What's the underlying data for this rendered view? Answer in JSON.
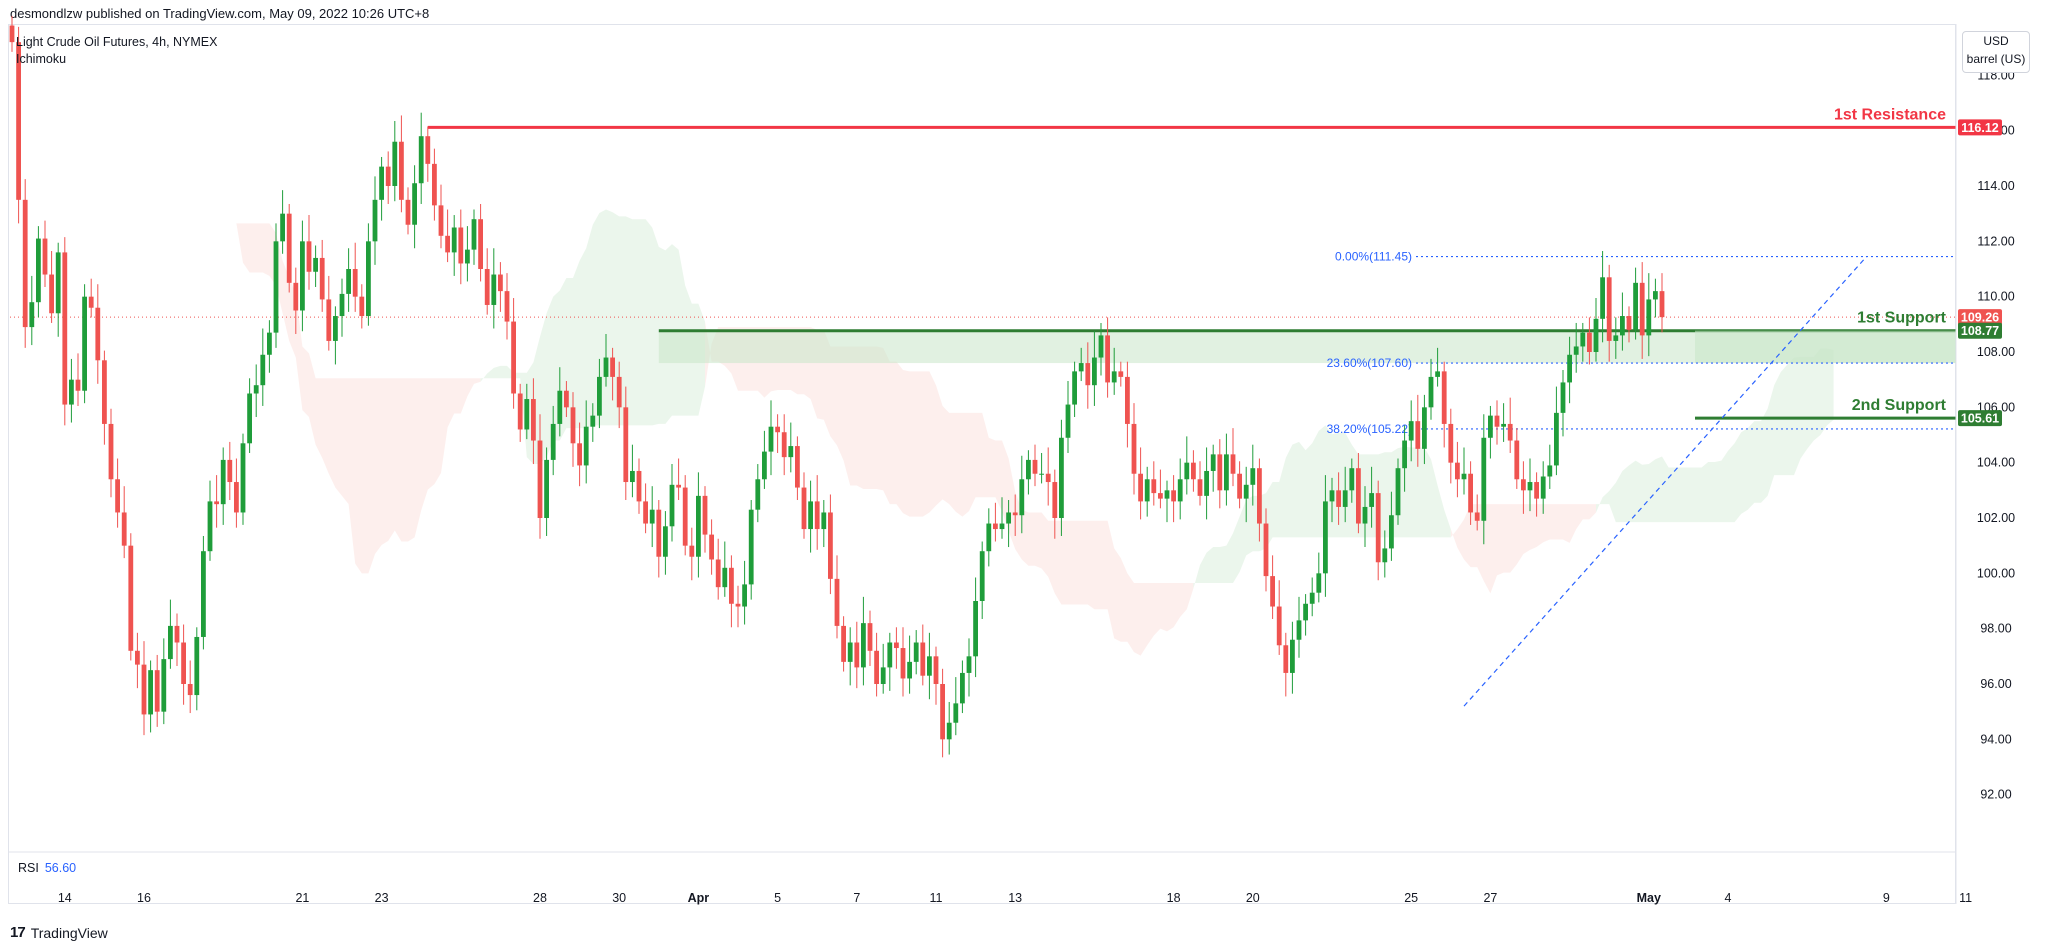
{
  "header": {
    "published_by": "desmondlzw published on TradingView.com, May 09, 2022 10:26 UTC+8"
  },
  "legend": {
    "symbol": "Light Crude Oil Futures, 4h, NYMEX",
    "indicator": "Ichimoku"
  },
  "unit": {
    "currency": "USD",
    "unit": "barrel (US)"
  },
  "rsi": {
    "label": "RSI",
    "value": "56.60"
  },
  "footer": {
    "brand": "TradingView",
    "logo_glyph": "17"
  },
  "colors": {
    "up": "#26a69a",
    "up_body": "#1f9d3a",
    "down": "#ef5350",
    "resistance": "#f23645",
    "support": "#2e7d32",
    "fib": "#2962ff",
    "kumo_bull": "#e8f5e9",
    "kumo_bear": "#fdecea"
  },
  "chart_data": {
    "type": "candlestick",
    "title": "Light Crude Oil Futures, 4h, NYMEX",
    "ylim": [
      90,
      120
    ],
    "y_ticks": [
      "92.00",
      "94.00",
      "96.00",
      "98.00",
      "100.00",
      "102.00",
      "104.00",
      "106.00",
      "108.00",
      "110.00",
      "112.00",
      "114.00",
      "116.00",
      "118.00"
    ],
    "x_ticks": [
      "14",
      "16",
      "21",
      "23",
      "28",
      "30",
      "Apr",
      "5",
      "7",
      "11",
      "13",
      "18",
      "20",
      "25",
      "27",
      "May",
      "4",
      "9",
      "11"
    ],
    "x_tick_index": [
      8,
      20,
      44,
      56,
      80,
      92,
      104,
      116,
      128,
      140,
      152,
      176,
      188,
      212,
      224,
      248,
      260,
      284,
      296
    ],
    "last_price": "109.26",
    "levels": [
      {
        "name": "1st Resistance",
        "value": 116.12,
        "label": "116.12",
        "color": "#f23645",
        "start_index": 63
      },
      {
        "name": "1st Support",
        "value": 108.77,
        "label": "108.77",
        "color": "#2e7d32",
        "start_index": 98
      },
      {
        "name": "2nd Support",
        "value": 105.61,
        "label": "105.61",
        "color": "#2e7d32",
        "start_index": 255
      }
    ],
    "fib": [
      {
        "label": "0.00%(111.45)",
        "value": 111.45
      },
      {
        "label": "23.60%(107.60)",
        "value": 107.6
      },
      {
        "label": "38.20%(105.22)",
        "value": 105.22
      }
    ],
    "fib_trend": {
      "from_index": 220,
      "from": 95.2,
      "to_index": 281,
      "to": 111.45
    },
    "close": [
      119.2,
      113.5,
      108.9,
      109.8,
      112.1,
      110.8,
      109.4,
      111.6,
      106.1,
      107.0,
      106.6,
      110.0,
      109.6,
      107.7,
      105.4,
      103.4,
      102.2,
      101.0,
      97.2,
      96.7,
      94.9,
      96.5,
      95.0,
      96.9,
      98.1,
      97.5,
      96.0,
      95.6,
      97.7,
      100.8,
      102.6,
      102.5,
      104.1,
      103.3,
      102.2,
      104.7,
      106.5,
      106.8,
      107.9,
      108.7,
      112.0,
      113.0,
      110.5,
      109.5,
      112.0,
      110.9,
      111.4,
      109.9,
      108.4,
      109.3,
      110.1,
      111.0,
      110.0,
      109.3,
      112.0,
      113.5,
      114.7,
      114.0,
      115.6,
      113.5,
      112.6,
      114.1,
      115.8,
      114.8,
      113.3,
      112.2,
      111.6,
      112.5,
      111.2,
      111.7,
      112.8,
      111.0,
      109.7,
      110.8,
      110.2,
      109.1,
      106.5,
      105.2,
      106.3,
      104.8,
      102.0,
      104.1,
      105.4,
      106.6,
      106.0,
      104.7,
      103.9,
      105.3,
      105.7,
      107.1,
      107.8,
      107.1,
      106.0,
      103.3,
      103.7,
      102.6,
      101.8,
      102.3,
      100.6,
      101.7,
      103.2,
      103.1,
      101.0,
      100.6,
      102.8,
      101.4,
      100.5,
      99.5,
      100.2,
      98.9,
      98.8,
      99.6,
      102.3,
      103.4,
      104.4,
      105.3,
      105.1,
      104.2,
      104.6,
      103.1,
      101.6,
      102.6,
      101.6,
      102.2,
      99.8,
      98.1,
      96.8,
      97.5,
      96.6,
      98.2,
      97.2,
      96.0,
      96.6,
      97.5,
      97.3,
      96.2,
      96.8,
      97.5,
      96.3,
      97.0,
      96.0,
      94.0,
      94.6,
      95.3,
      96.4,
      97.0,
      99.0,
      100.8,
      101.8,
      101.6,
      101.8,
      102.2,
      102.1,
      103.4,
      104.1,
      103.6,
      103.6,
      103.3,
      102.0,
      104.9,
      106.1,
      107.3,
      107.6,
      106.8,
      107.8,
      108.6,
      106.9,
      107.3,
      107.1,
      105.4,
      103.6,
      102.6,
      103.4,
      102.9,
      102.7,
      103.0,
      102.6,
      103.4,
      104.0,
      103.4,
      102.8,
      103.7,
      104.3,
      103.0,
      104.3,
      103.6,
      102.7,
      103.2,
      103.8,
      101.8,
      99.9,
      98.8,
      97.4,
      96.4,
      97.6,
      98.3,
      98.9,
      99.3,
      100.0,
      102.6,
      103.0,
      102.4,
      103.0,
      103.8,
      101.8,
      102.4,
      102.9,
      100.4,
      100.9,
      102.1,
      103.8,
      104.8,
      105.5,
      104.5,
      106.0,
      107.1,
      107.3,
      105.4,
      104.0,
      103.4,
      103.6,
      102.2,
      101.9,
      104.9,
      105.7,
      105.3,
      105.4,
      104.8,
      103.4,
      103.0,
      103.3,
      102.7,
      103.5,
      103.9,
      105.8,
      106.9,
      107.9,
      108.2,
      108.7,
      108.0,
      109.2,
      110.7,
      108.4,
      108.6,
      109.3,
      108.8,
      110.5,
      108.6,
      109.9,
      110.2,
      109.26
    ]
  }
}
